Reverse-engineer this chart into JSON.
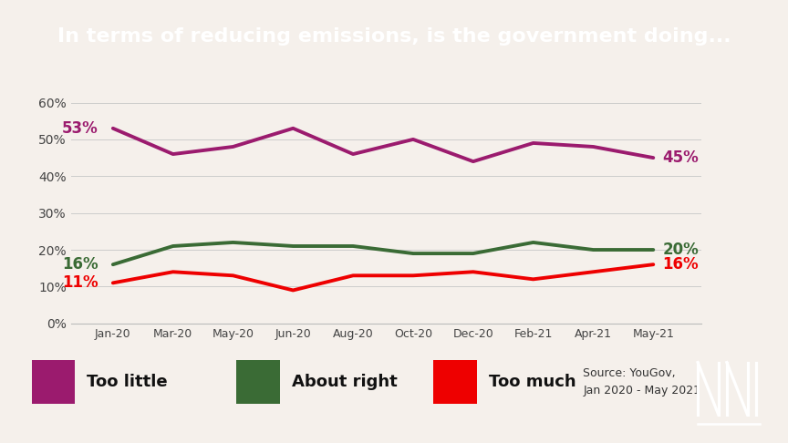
{
  "title": "In terms of reducing emissions, is the government doing...",
  "title_bg": "#000000",
  "title_color": "#ffffff",
  "bg_color": "#f5f0eb",
  "x_labels": [
    "Jan-20",
    "Mar-20",
    "May-20",
    "Jun-20",
    "Aug-20",
    "Oct-20",
    "Dec-20",
    "Feb-21",
    "Apr-21",
    "May-21"
  ],
  "too_little": [
    53,
    46,
    48,
    53,
    46,
    50,
    44,
    49,
    48,
    45
  ],
  "about_right": [
    16,
    21,
    22,
    21,
    21,
    19,
    19,
    22,
    20,
    20
  ],
  "too_much": [
    11,
    14,
    13,
    9,
    13,
    13,
    14,
    12,
    14,
    16
  ],
  "too_little_color": "#9b1b6e",
  "about_right_color": "#3a6b35",
  "too_much_color": "#ee0000",
  "ylim": [
    0,
    65
  ],
  "yticks": [
    0,
    10,
    20,
    30,
    40,
    50,
    60
  ],
  "legend_labels": [
    "Too little",
    "About right",
    "Too much"
  ],
  "source_text": "Source: YouGov,\nJan 2020 - May 2021",
  "line_width": 2.8
}
